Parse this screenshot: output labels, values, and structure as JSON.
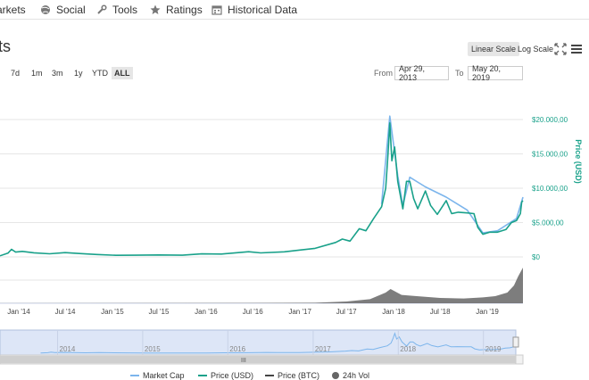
{
  "tabs": [
    {
      "label": "arkets",
      "icon": "chart-icon"
    },
    {
      "label": "Social",
      "icon": "globe-icon"
    },
    {
      "label": "Tools",
      "icon": "wrench-icon"
    },
    {
      "label": "Ratings",
      "icon": "star-icon"
    },
    {
      "label": "Historical Data",
      "icon": "calendar-icon"
    }
  ],
  "title": "rts",
  "scale": {
    "linear": "Linear Scale",
    "log": "Log Scale",
    "active": "linear"
  },
  "range_buttons": [
    {
      "label": "7d"
    },
    {
      "label": "1m"
    },
    {
      "label": "3m"
    },
    {
      "label": "1y"
    },
    {
      "label": "YTD"
    },
    {
      "label": "ALL",
      "active": true
    }
  ],
  "date_range": {
    "from_label": "From",
    "from": "Apr 29, 2013",
    "to_label": "To",
    "to": "May 20, 2019"
  },
  "chart_data": {
    "type": "line",
    "y_axis": {
      "label": "Price (USD)",
      "ticks": [
        "$20.000,00",
        "$15.000,00",
        "$10.000,00",
        "$5.000,00",
        "$0"
      ],
      "tick_values": [
        20000,
        15000,
        10000,
        5000,
        0
      ],
      "ylim": [
        0,
        20000
      ]
    },
    "x_axis": {
      "ticks": [
        "Jan '14",
        "Jul '14",
        "Jan '15",
        "Jul '15",
        "Jan '16",
        "Jul '16",
        "Jan '17",
        "Jul '17",
        "Jan '18",
        "Jul '18",
        "Jan '19"
      ],
      "xlim": [
        "2013-10-20",
        "2019-05-20"
      ]
    },
    "series": [
      {
        "name": "Price (USD)",
        "color": "#19a18a",
        "x": [
          "2013-10-20",
          "2013-11-20",
          "2013-12-04",
          "2013-12-20",
          "2014-01-15",
          "2014-03-01",
          "2014-05-01",
          "2014-07-01",
          "2014-09-01",
          "2014-11-01",
          "2015-01-15",
          "2015-04-01",
          "2015-07-01",
          "2015-10-01",
          "2015-12-15",
          "2016-03-01",
          "2016-06-15",
          "2016-08-01",
          "2016-11-01",
          "2017-01-01",
          "2017-03-01",
          "2017-05-20",
          "2017-06-15",
          "2017-07-15",
          "2017-08-20",
          "2017-09-15",
          "2017-10-15",
          "2017-11-15",
          "2017-12-01",
          "2017-12-10",
          "2017-12-17",
          "2017-12-25",
          "2018-01-05",
          "2018-01-17",
          "2018-02-06",
          "2018-02-20",
          "2018-03-05",
          "2018-03-20",
          "2018-04-05",
          "2018-05-05",
          "2018-05-25",
          "2018-06-20",
          "2018-07-25",
          "2018-08-15",
          "2018-09-10",
          "2018-10-15",
          "2018-11-10",
          "2018-11-25",
          "2018-12-15",
          "2019-01-10",
          "2019-02-10",
          "2019-03-15",
          "2019-04-05",
          "2019-04-25",
          "2019-05-10",
          "2019-05-15",
          "2019-05-20"
        ],
        "values": [
          150,
          550,
          1100,
          700,
          800,
          600,
          450,
          620,
          480,
          350,
          240,
          250,
          280,
          250,
          440,
          420,
          750,
          590,
          740,
          1000,
          1250,
          2100,
          2600,
          2300,
          4100,
          3800,
          5600,
          7300,
          10000,
          15000,
          19500,
          14000,
          16000,
          11000,
          7000,
          11000,
          11000,
          8500,
          7000,
          9600,
          7500,
          6200,
          8200,
          6300,
          6500,
          6400,
          6300,
          4300,
          3300,
          3600,
          3600,
          4000,
          5000,
          5300,
          6300,
          8000,
          8200
        ]
      },
      {
        "name": "Market Cap",
        "color": "#7cb5ec",
        "x": [
          "2017-11-15",
          "2017-12-17",
          "2018-01-17",
          "2018-02-06",
          "2018-03-05",
          "2018-05-05",
          "2018-07-25",
          "2018-10-15",
          "2018-12-15",
          "2019-02-10",
          "2019-04-25",
          "2019-05-20"
        ],
        "values": [
          7700,
          20500,
          11800,
          7500,
          11600,
          10200,
          8700,
          6800,
          3500,
          3800,
          5600,
          8700
        ]
      }
    ],
    "volume": {
      "name": "24h Vol",
      "color": "#666666",
      "x": [
        "2013-10-20",
        "2016-06-01",
        "2017-03-01",
        "2017-07-01",
        "2017-10-01",
        "2017-12-01",
        "2017-12-20",
        "2018-02-01",
        "2018-04-01",
        "2018-07-01",
        "2018-10-01",
        "2018-12-15",
        "2019-02-01",
        "2019-03-20",
        "2019-04-15",
        "2019-05-01",
        "2019-05-20"
      ],
      "values": [
        0.2,
        0.5,
        1,
        3,
        7,
        18,
        24,
        14,
        12,
        9,
        8,
        10,
        12,
        18,
        30,
        45,
        60
      ]
    },
    "navigator": {
      "labels": [
        "2014",
        "2015",
        "2016",
        "2017",
        "2018",
        "2019"
      ]
    },
    "legend": [
      {
        "label": "Market Cap",
        "color": "#7cb5ec",
        "symbol": "line"
      },
      {
        "label": "Price (USD)",
        "color": "#19a18a",
        "symbol": "line"
      },
      {
        "label": "Price (BTC)",
        "color": "#444444",
        "symbol": "line"
      },
      {
        "label": "24h Vol",
        "color": "#666666",
        "symbol": "circle"
      }
    ]
  }
}
